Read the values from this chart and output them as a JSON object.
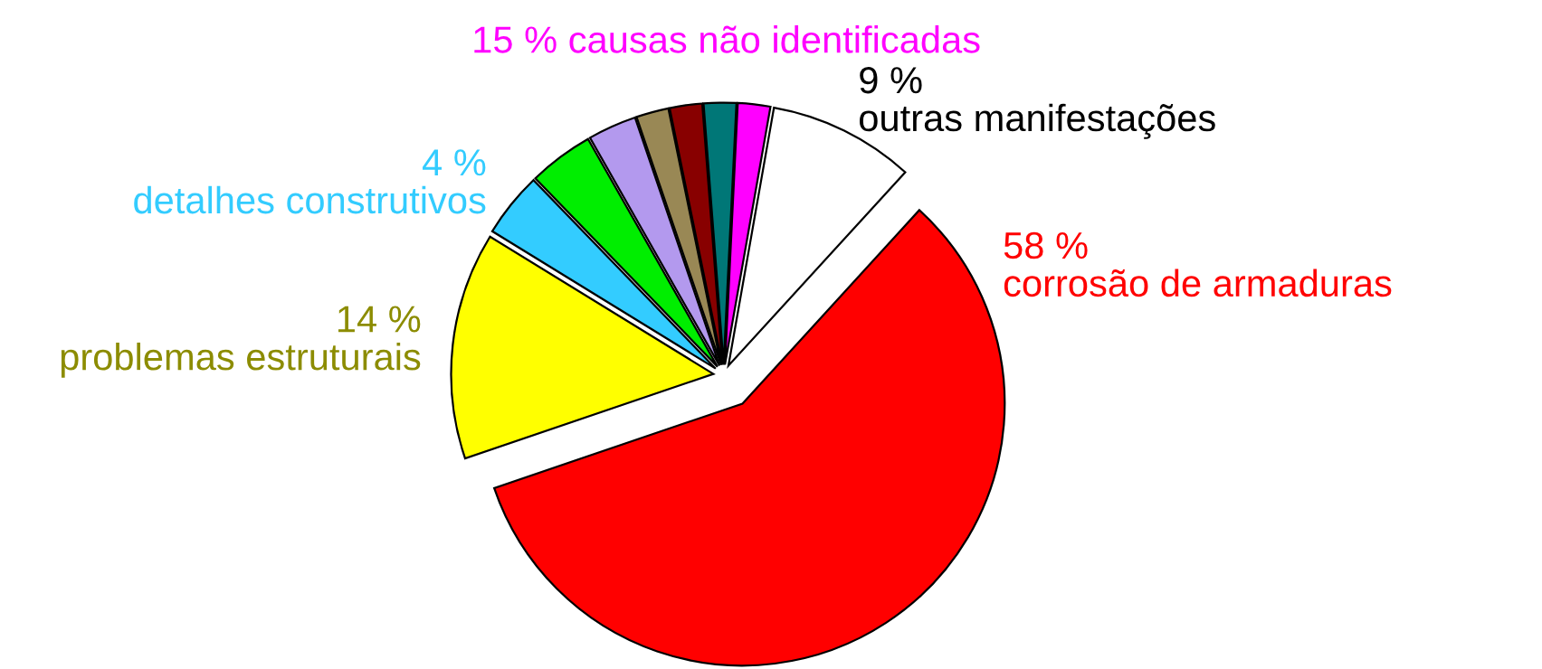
{
  "chart_data": {
    "type": "pie",
    "categories": [
      "outras manifestações",
      "corrosão de armaduras",
      "problemas estruturais",
      "detalhes construtivos",
      null,
      null,
      null,
      null,
      null,
      null
    ],
    "values": [
      9,
      58,
      14,
      4,
      4,
      3,
      2,
      2,
      2,
      2
    ],
    "value_labels": [
      "9 %",
      "58 %",
      "14 %",
      "4 %",
      null,
      null,
      null,
      null,
      null,
      null
    ],
    "colors": [
      "#ffffff",
      "#ff0000",
      "#ffff00",
      "#33ccff",
      "#00ee00",
      "#b399ee",
      "#998855",
      "#880000",
      "#007777",
      "#ff00ff"
    ],
    "annotations": [
      "15 % causas não identificadas"
    ]
  }
}
